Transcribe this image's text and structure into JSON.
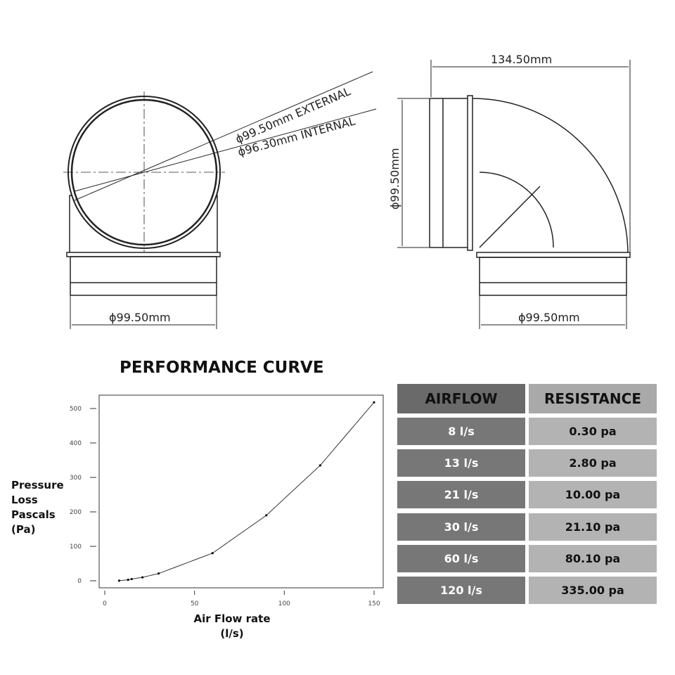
{
  "drawing": {
    "front_external": "ϕ99.50mm EXTERNAL",
    "front_internal": "ϕ96.30mm INTERNAL",
    "front_bottom_diameter": "ϕ99.50mm",
    "side_width": "134.50mm",
    "side_height": "ϕ99.50mm",
    "side_bottom_diameter": "ϕ99.50mm"
  },
  "chart_title": "PERFORMANCE CURVE",
  "chart_data": {
    "type": "line",
    "ylabel": [
      "Pressure",
      "Loss",
      "Pascals",
      "(Pa)"
    ],
    "xlabel": [
      "Air Flow rate",
      "(l/s)"
    ],
    "xlim": [
      0,
      150
    ],
    "ylim": [
      0,
      500
    ],
    "xticks": [
      0,
      50,
      100,
      150
    ],
    "yticks": [
      0,
      100,
      200,
      300,
      400,
      500
    ],
    "grid": false,
    "points": [
      [
        8,
        0.3
      ],
      [
        13,
        2.8
      ],
      [
        15,
        5
      ],
      [
        21,
        10
      ],
      [
        30,
        21.1
      ],
      [
        60,
        80.1
      ],
      [
        90,
        190
      ],
      [
        120,
        335
      ],
      [
        150,
        518
      ]
    ]
  },
  "table": {
    "headers": [
      "AIRFLOW",
      "RESISTANCE"
    ],
    "rows": [
      [
        "8 l/s",
        "0.30 pa"
      ],
      [
        "13 l/s",
        "2.80 pa"
      ],
      [
        "21 l/s",
        "10.00 pa"
      ],
      [
        "30 l/s",
        "21.10 pa"
      ],
      [
        "60 l/s",
        "80.10 pa"
      ],
      [
        "120 l/s",
        "335.00 pa"
      ]
    ],
    "colors": {
      "header_left": "#6a6a6a",
      "header_right": "#a9a9a9",
      "row_left": "#777777",
      "row_right": "#b3b3b3"
    }
  }
}
